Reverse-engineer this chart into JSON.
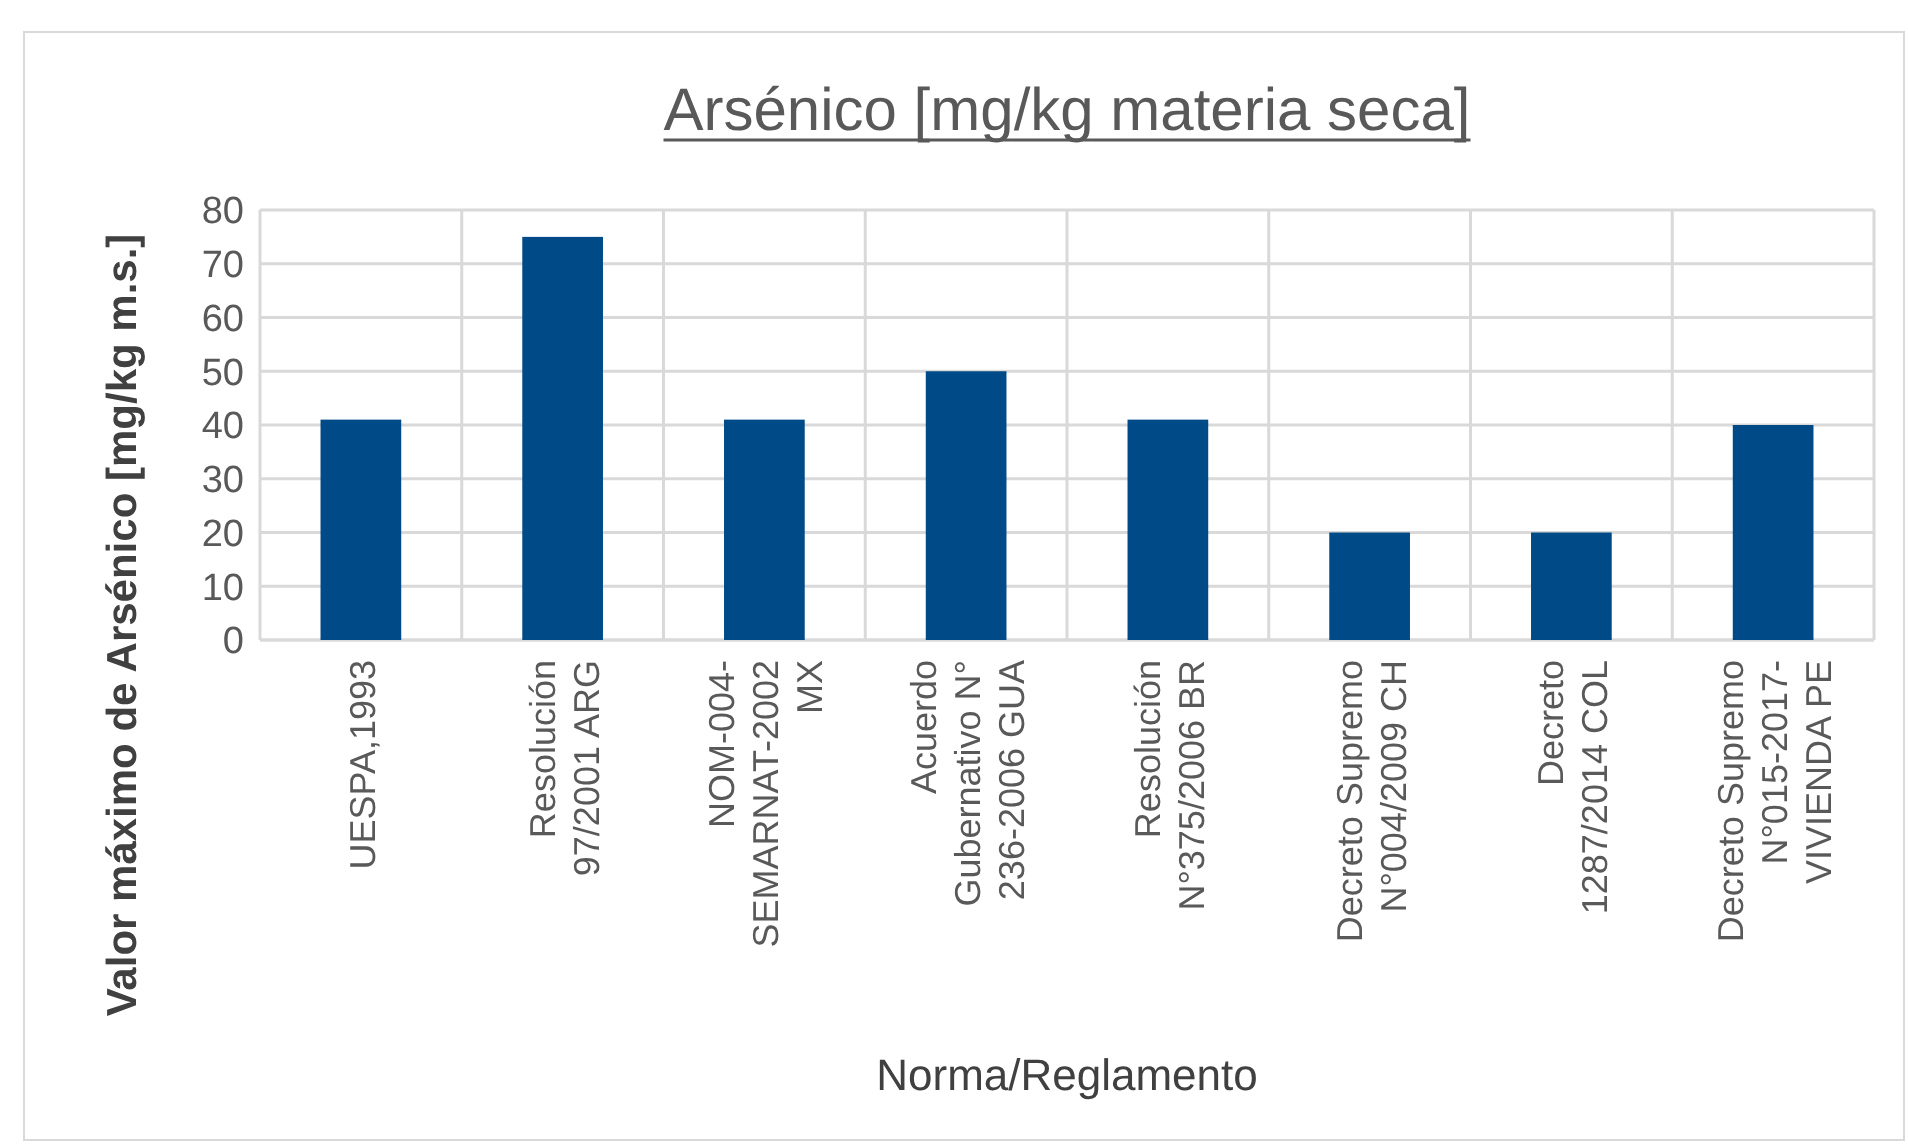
{
  "chart_data": {
    "type": "bar",
    "title": "Arsénico  [mg/kg materia seca]",
    "xlabel": "Norma/Reglamento",
    "ylabel": "Valor máximo de Arsénico [mg/kg m.s.]",
    "categories": [
      "UESPA,1993",
      "Resolución\n97/2001 ARG",
      "NOM-004-\nSEMARNAT-2002\nMX",
      "Acuerdo\nGubernativo N°\n236-2006 GUA",
      "Resolución\nN°375/2006 BR",
      "Decreto Supremo\nN°004/2009 CH",
      "Decreto\n1287/2014 COL",
      "Decreto Supremo\nN°015-2017-\nVIVIENDA  PE"
    ],
    "values": [
      41,
      75,
      41,
      50,
      41,
      20,
      20,
      40
    ],
    "color": "#004b87",
    "ylim": [
      0,
      80
    ],
    "yticks": [
      0,
      10,
      20,
      30,
      40,
      50,
      60,
      70,
      80
    ],
    "grid": true
  }
}
